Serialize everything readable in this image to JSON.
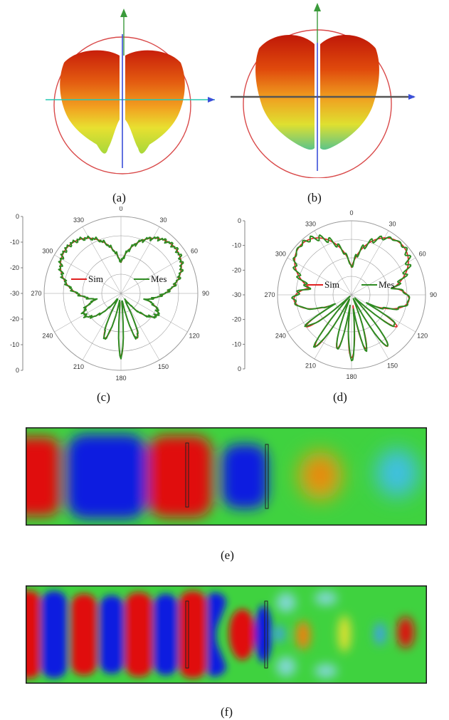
{
  "captions": {
    "a": "(a)",
    "b": "(b)",
    "c": "(c)",
    "d": "(d)",
    "e": "(e)",
    "f": "(f)"
  },
  "polar": {
    "angle_labels": [
      "0",
      "30",
      "60",
      "90",
      "120",
      "150",
      "180",
      "210",
      "240",
      "270",
      "300",
      "330"
    ],
    "radial_ticks_top": [
      "0",
      "-10",
      "-20",
      "-30"
    ],
    "radial_ticks_bottom": [
      "-20",
      "-10",
      "0"
    ],
    "series": [
      {
        "name": "Sim",
        "color": "#e02020"
      },
      {
        "name": "Mes",
        "color": "#2e8b22"
      }
    ],
    "circle_color": "#9a9a9a"
  },
  "patterns3d": {
    "axis_colors": {
      "vertical": "#3b4fd9",
      "horizontal": "#25c8b4",
      "up_arrow": "#3a9a3a",
      "bound": "#d94a4a"
    },
    "lobe_colors": [
      "#c81e0a",
      "#e35a10",
      "#f2a020",
      "#e8e030",
      "#a8d83a",
      "#5cc48a"
    ]
  },
  "field_maps": {
    "border_color": "#1a1a1a",
    "background": "#3fd23f",
    "palette": {
      "red": "#e01010",
      "blue": "#0a1ee0",
      "yellow": "#e0e020",
      "cyan": "#40c0e0",
      "orange": "#f08010"
    }
  }
}
